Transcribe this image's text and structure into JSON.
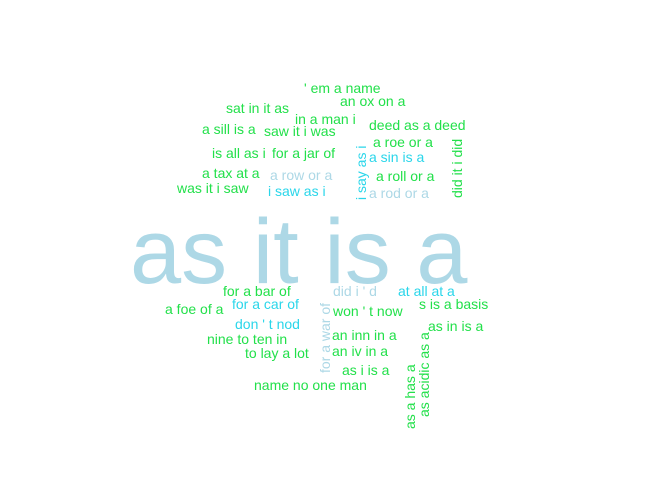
{
  "colors": {
    "green": "#22e04a",
    "cyan": "#2ad6ea",
    "lightblue": "#add8e6"
  },
  "words": [
    {
      "text": "as it is a",
      "color": "lightblue"
    },
    {
      "text": "' em a name",
      "color": "green"
    },
    {
      "text": "an ox on a",
      "color": "green"
    },
    {
      "text": "sat in it as",
      "color": "green"
    },
    {
      "text": "in a man i",
      "color": "green"
    },
    {
      "text": "a sill is a",
      "color": "green"
    },
    {
      "text": "saw it i was",
      "color": "green"
    },
    {
      "text": "deed as a deed",
      "color": "green"
    },
    {
      "text": "a roe or a",
      "color": "green"
    },
    {
      "text": "is all as i",
      "color": "green"
    },
    {
      "text": "for a jar of",
      "color": "green"
    },
    {
      "text": "a sin is a",
      "color": "cyan"
    },
    {
      "text": "i say as i",
      "color": "cyan"
    },
    {
      "text": "did it i did",
      "color": "green"
    },
    {
      "text": "a tax at a",
      "color": "green"
    },
    {
      "text": "a row or a",
      "color": "lightblue"
    },
    {
      "text": "a roll or a",
      "color": "green"
    },
    {
      "text": "was it i saw",
      "color": "green"
    },
    {
      "text": "i saw as i",
      "color": "cyan"
    },
    {
      "text": "a rod or a",
      "color": "lightblue"
    },
    {
      "text": "for a bar of",
      "color": "green"
    },
    {
      "text": "for a war of",
      "color": "lightblue"
    },
    {
      "text": "did i ' d",
      "color": "lightblue"
    },
    {
      "text": "at all at a",
      "color": "cyan"
    },
    {
      "text": "a foe of a",
      "color": "green"
    },
    {
      "text": "for a car of",
      "color": "cyan"
    },
    {
      "text": "won ' t now",
      "color": "green"
    },
    {
      "text": "s is a basis",
      "color": "green"
    },
    {
      "text": "don ' t nod",
      "color": "cyan"
    },
    {
      "text": "as in is a",
      "color": "green"
    },
    {
      "text": "nine to ten in",
      "color": "green"
    },
    {
      "text": "an inn in a",
      "color": "green"
    },
    {
      "text": "as acidic as a",
      "color": "green"
    },
    {
      "text": "to lay a lot",
      "color": "green"
    },
    {
      "text": "an iv in a",
      "color": "green"
    },
    {
      "text": "as a has a",
      "color": "green"
    },
    {
      "text": "as i is a",
      "color": "green"
    },
    {
      "text": "name no one man",
      "color": "green"
    }
  ]
}
